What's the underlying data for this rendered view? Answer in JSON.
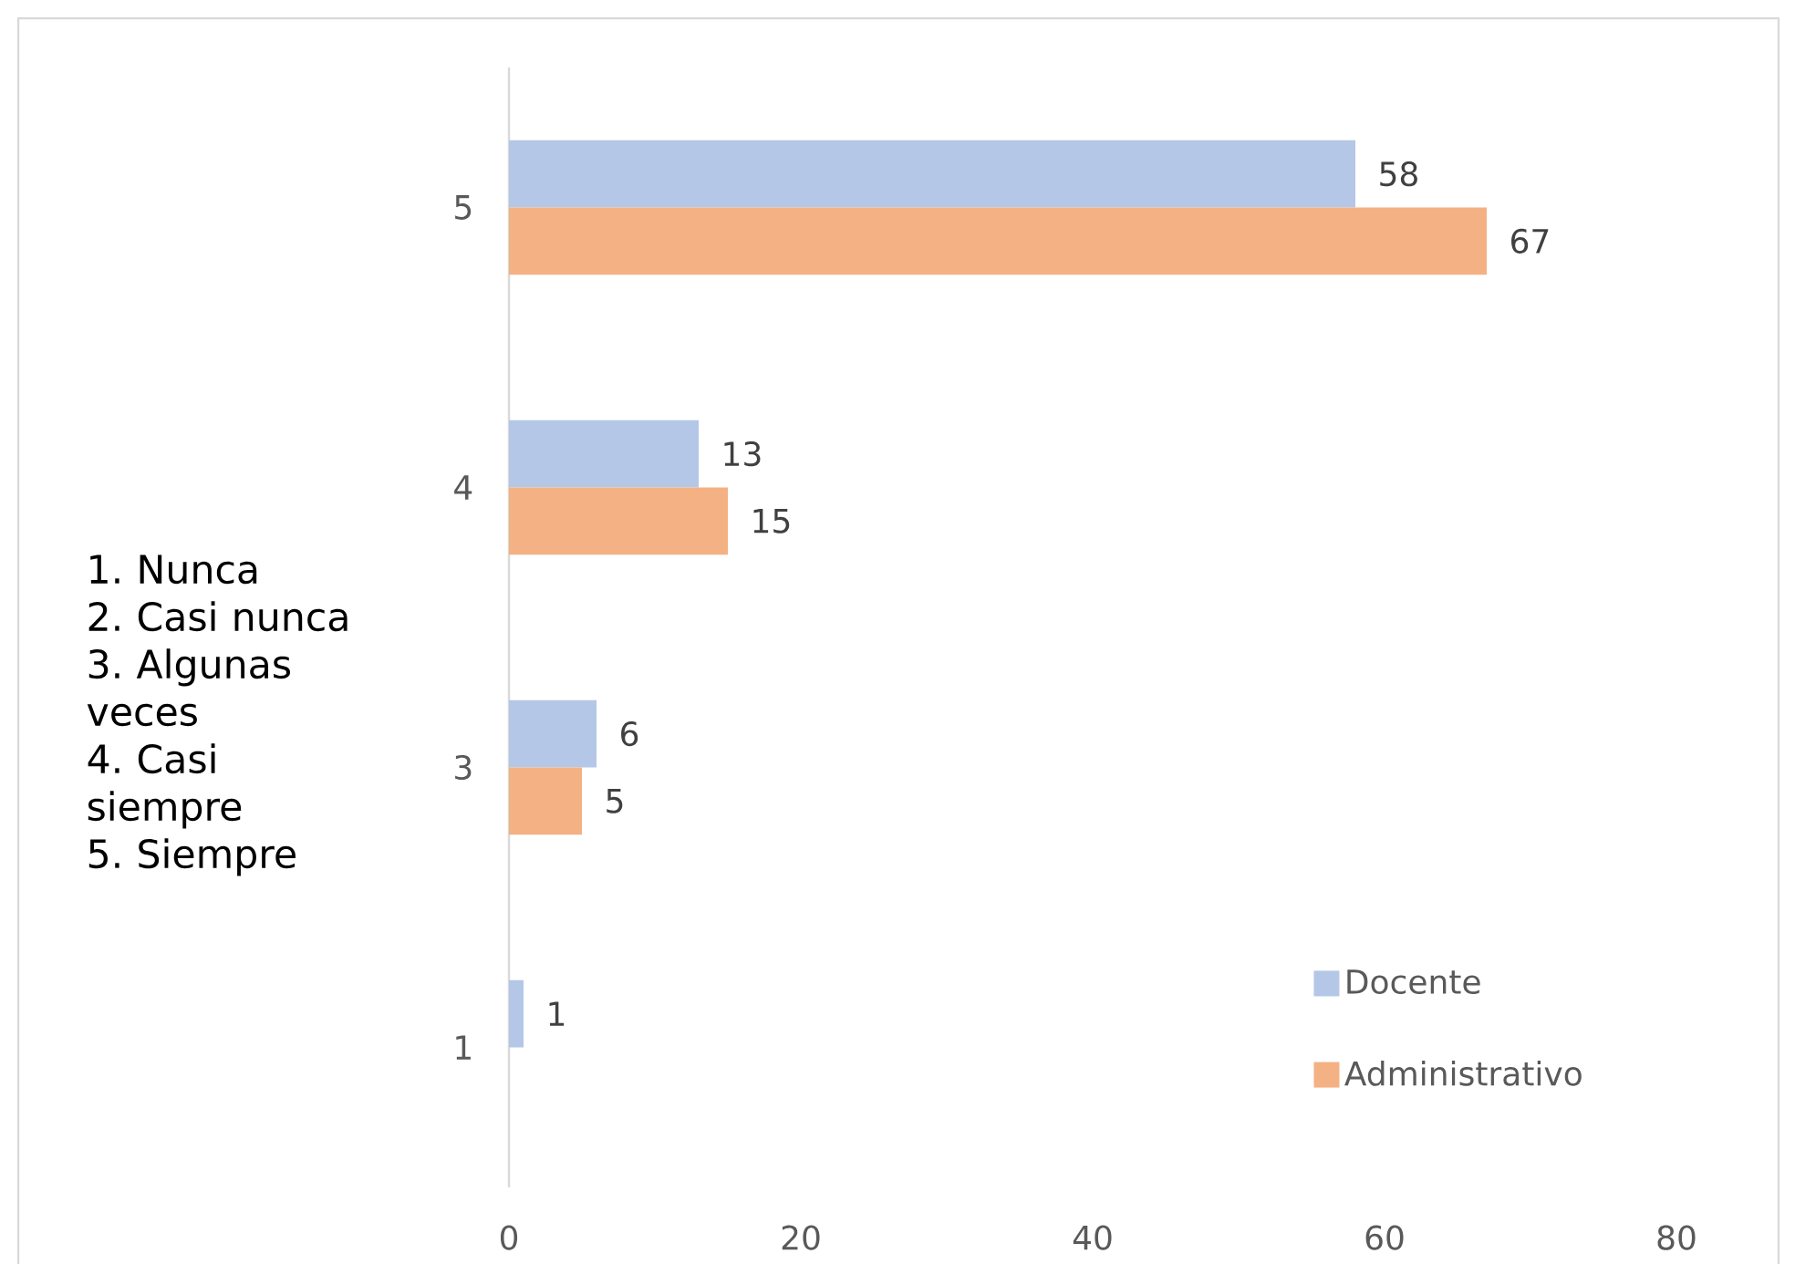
{
  "chart_data": {
    "type": "bar",
    "orientation": "horizontal",
    "categories": [
      "5",
      "4",
      "3",
      "1"
    ],
    "series": [
      {
        "name": "Docente",
        "color": "#b4c7e7",
        "values": [
          58,
          13,
          6,
          1
        ]
      },
      {
        "name": "Administrativo",
        "color": "#f4b183",
        "values": [
          67,
          15,
          5,
          null
        ]
      }
    ],
    "xlim": [
      0,
      80
    ],
    "xticks": [
      0,
      20,
      40,
      60,
      80
    ],
    "data_labels": true,
    "legend": "bottom right",
    "annotations": [
      "1. Nunca",
      "2. Casi nunca",
      "3. Algunas veces",
      "4. Casi siempre",
      "5. Siempre"
    ]
  }
}
